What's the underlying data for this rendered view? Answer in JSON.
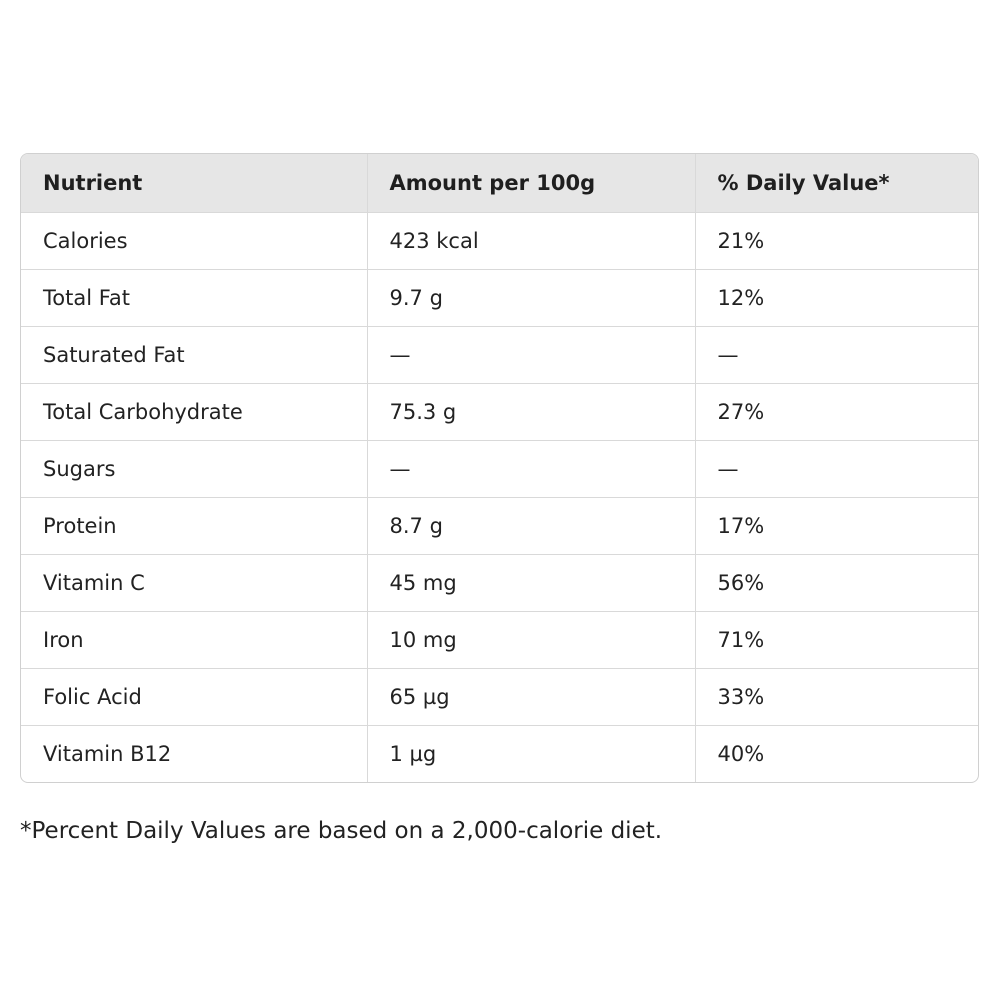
{
  "table": {
    "headers": [
      "Nutrient",
      "Amount per 100g",
      "% Daily Value*"
    ],
    "rows": [
      [
        "Calories",
        "423 kcal",
        "21%"
      ],
      [
        "Total Fat",
        "9.7 g",
        "12%"
      ],
      [
        "Saturated Fat",
        "—",
        "—"
      ],
      [
        "Total Carbohydrate",
        "75.3 g",
        "27%"
      ],
      [
        "Sugars",
        "—",
        "—"
      ],
      [
        "Protein",
        "8.7 g",
        "17%"
      ],
      [
        "Vitamin C",
        "45 mg",
        "56%"
      ],
      [
        "Iron",
        "10 mg",
        "71%"
      ],
      [
        "Folic Acid",
        "65 µg",
        "33%"
      ],
      [
        "Vitamin B12",
        "1 µg",
        "40%"
      ]
    ]
  },
  "footnote": "*Percent Daily Values are based on a 2,000-calorie diet."
}
